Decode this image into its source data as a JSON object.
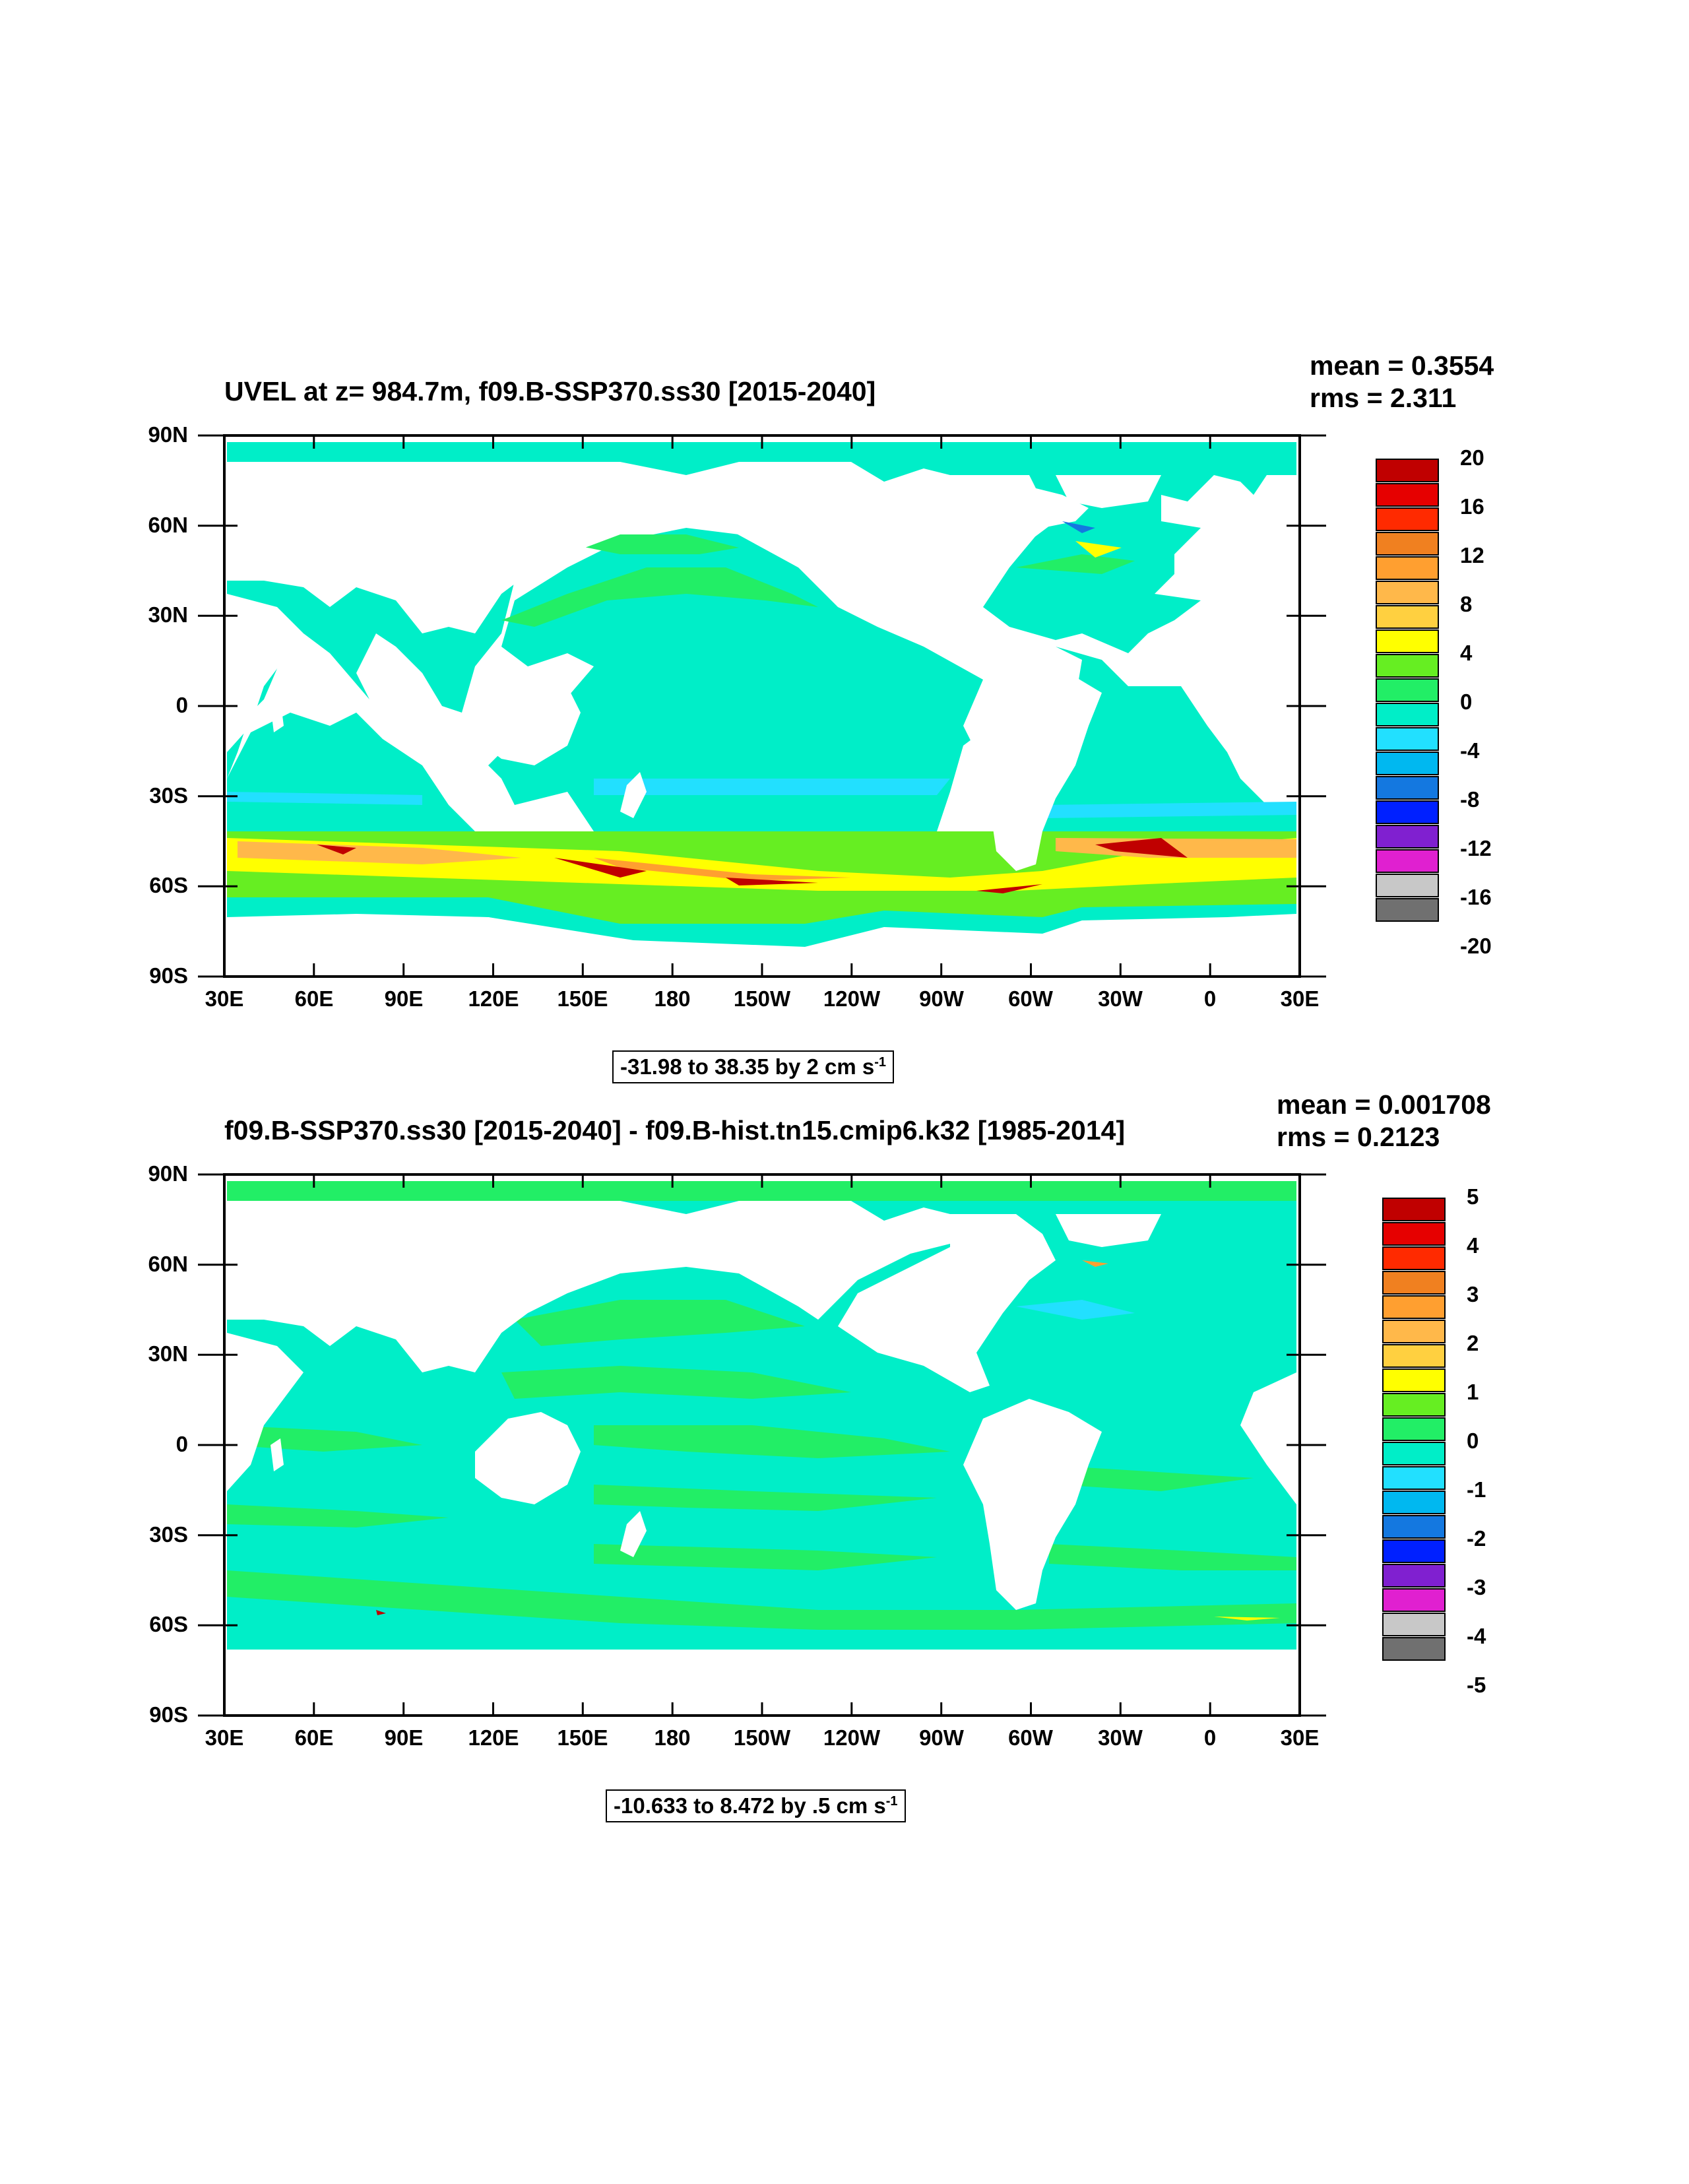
{
  "panels": [
    {
      "title": "UVEL at z= 984.7m, f09.B-SSP370.ss30 [2015-2040]",
      "mean_text": "mean = 0.3554",
      "rms_text": "rms = 2.311",
      "range_text": "-31.98 to 38.35 by 2 cm s",
      "range_unit_sup": "-1",
      "colorbar_labels": [
        "20",
        "16",
        "12",
        "8",
        "4",
        "0",
        "-4",
        "-8",
        "-12",
        "-16",
        "-20"
      ]
    },
    {
      "title": "f09.B-SSP370.ss30 [2015-2040] - f09.B-hist.tn15.cmip6.k32 [1985-2014]",
      "mean_text": "mean = 0.001708",
      "rms_text": "rms = 0.2123",
      "range_text": "-10.633 to 8.472 by .5 cm s",
      "range_unit_sup": "-1",
      "colorbar_labels": [
        "5",
        "4",
        "3",
        "2",
        "1",
        "0",
        "-1",
        "-2",
        "-3",
        "-4",
        "-5"
      ]
    }
  ],
  "lat_labels": [
    "90N",
    "60N",
    "30N",
    "0",
    "30S",
    "60S",
    "90S"
  ],
  "lon_labels": [
    "30E",
    "60E",
    "90E",
    "120E",
    "150E",
    "180",
    "150W",
    "120W",
    "90W",
    "60W",
    "30W",
    "0",
    "30E"
  ],
  "colors": {
    "palette_top_to_bottom": [
      "#c00000",
      "#e60000",
      "#ff2a00",
      "#f08020",
      "#ff9f30",
      "#ffb84a",
      "#ffd040",
      "#ffff00",
      "#66ee22",
      "#22ee66",
      "#00eec8",
      "#22e0ff",
      "#00b8f0",
      "#1478e0",
      "#0020ff",
      "#8020d0",
      "#e020d0",
      "#c8c8c8",
      "#707070"
    ]
  }
}
